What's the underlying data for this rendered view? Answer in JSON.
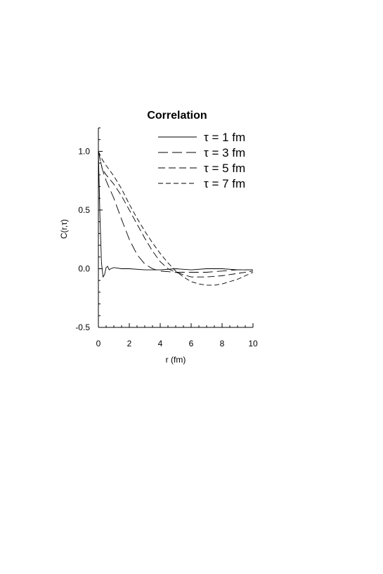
{
  "chart_data": {
    "type": "line",
    "title": "Correlation",
    "xlabel": "r (fm)",
    "ylabel": "C(r,τ)",
    "xlim": [
      0,
      10
    ],
    "ylim": [
      -0.5,
      1.2
    ],
    "xticks": [
      0,
      2,
      4,
      6,
      8,
      10
    ],
    "xtick_labels": [
      "0",
      "2",
      "4",
      "6",
      "8",
      "10"
    ],
    "yticks": [
      -0.5,
      0.0,
      0.5,
      1.0
    ],
    "ytick_labels": [
      "-0.5",
      "0.0",
      "0.5",
      "1.0"
    ],
    "legend_position": "top-right",
    "grid": false,
    "series": [
      {
        "name": "τ = 1 fm",
        "dash": "solid",
        "x": [
          0,
          0.1,
          0.2,
          0.3,
          0.4,
          0.5,
          0.6,
          0.7,
          0.8,
          1.0,
          1.5,
          2,
          3,
          4,
          5,
          6,
          7,
          8,
          9,
          10
        ],
        "y": [
          1.0,
          0.45,
          0.05,
          -0.07,
          -0.05,
          0.01,
          0.02,
          -0.01,
          0.0,
          0.01,
          0.0,
          0.0,
          -0.01,
          -0.01,
          0.0,
          -0.01,
          0.0,
          0.0,
          -0.01,
          -0.01
        ]
      },
      {
        "name": "τ = 3 fm",
        "dash": "long",
        "x": [
          0,
          0.25,
          0.5,
          1,
          1.5,
          2,
          2.5,
          3,
          3.5,
          4,
          5,
          6,
          7,
          8,
          9,
          10
        ],
        "y": [
          1.0,
          0.85,
          0.75,
          0.6,
          0.42,
          0.25,
          0.12,
          0.04,
          0.0,
          -0.02,
          -0.03,
          -0.03,
          -0.03,
          -0.02,
          -0.01,
          -0.01
        ]
      },
      {
        "name": "τ = 5 fm",
        "dash": "medium",
        "x": [
          0,
          0.25,
          0.5,
          1,
          1.5,
          2,
          2.5,
          3,
          3.5,
          4,
          4.5,
          5,
          6,
          7,
          8,
          9,
          10
        ],
        "y": [
          1.0,
          0.85,
          0.8,
          0.72,
          0.62,
          0.5,
          0.38,
          0.26,
          0.15,
          0.06,
          0.0,
          -0.03,
          -0.07,
          -0.07,
          -0.06,
          -0.04,
          -0.02
        ]
      },
      {
        "name": "τ = 7 fm",
        "dash": "short",
        "x": [
          0,
          0.25,
          0.5,
          1,
          1.5,
          2,
          2.5,
          3,
          3.5,
          4,
          4.5,
          5,
          5.5,
          6,
          6.5,
          7,
          7.5,
          8,
          9,
          10
        ],
        "y": [
          1.0,
          0.93,
          0.88,
          0.79,
          0.68,
          0.55,
          0.43,
          0.32,
          0.22,
          0.13,
          0.05,
          -0.02,
          -0.07,
          -0.11,
          -0.13,
          -0.14,
          -0.14,
          -0.13,
          -0.09,
          -0.03
        ]
      }
    ]
  }
}
